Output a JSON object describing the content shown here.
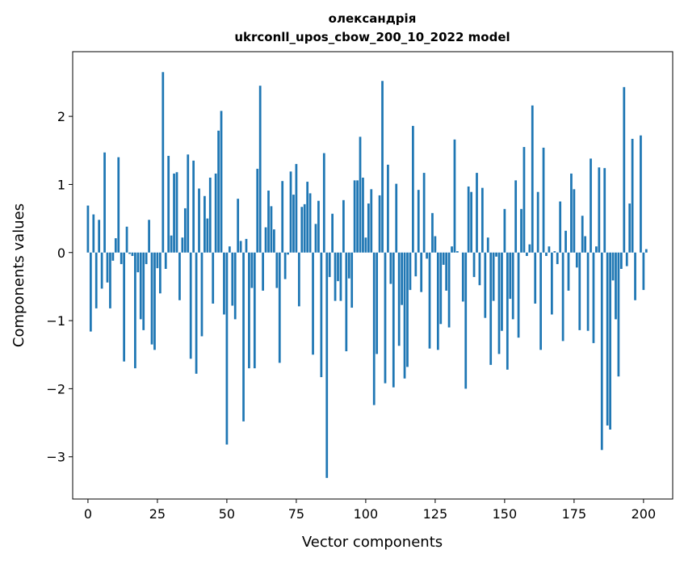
{
  "chart_data": {
    "type": "bar",
    "title": "олександрія",
    "subtitle": "ukrconll_upos_cbow_200_10_2022 model",
    "xlabel": "Vector components",
    "ylabel": "Components values",
    "xlim": [
      -5.5,
      210.5
    ],
    "ylim": [
      -3.62,
      2.95
    ],
    "xticks": [
      0,
      25,
      50,
      75,
      100,
      125,
      150,
      175,
      200
    ],
    "xtick_labels": [
      "0",
      "25",
      "50",
      "75",
      "100",
      "125",
      "150",
      "175",
      "200"
    ],
    "yticks": [
      -3,
      -2,
      -1,
      0,
      1,
      2
    ],
    "ytick_labels": [
      "−3",
      "−2",
      "−1",
      "0",
      "1",
      "2"
    ],
    "bar_color": "#1f77b4",
    "values": [
      0.69,
      -1.16,
      0.56,
      -0.82,
      0.48,
      -0.53,
      1.47,
      -0.44,
      -0.82,
      -0.12,
      0.21,
      1.4,
      -0.17,
      -1.6,
      0.38,
      -0.02,
      -0.05,
      -1.7,
      -0.29,
      -0.98,
      -1.14,
      -0.17,
      0.48,
      -1.35,
      -1.43,
      -0.23,
      -0.6,
      2.65,
      -0.24,
      1.42,
      0.25,
      1.16,
      1.18,
      -0.7,
      0.22,
      0.65,
      1.44,
      -1.56,
      1.35,
      -1.78,
      0.94,
      -1.23,
      0.83,
      0.5,
      1.1,
      -0.75,
      1.16,
      1.79,
      2.08,
      -0.91,
      -2.82,
      0.09,
      -0.78,
      -0.98,
      0.79,
      0.17,
      -2.48,
      0.2,
      -1.7,
      -0.52,
      -1.7,
      1.23,
      2.45,
      -0.56,
      0.37,
      0.91,
      0.68,
      0.34,
      -0.52,
      -1.62,
      1.05,
      -0.39,
      -0.03,
      1.19,
      0.85,
      1.3,
      -0.79,
      0.67,
      0.71,
      1.04,
      0.87,
      -1.5,
      0.42,
      0.76,
      -1.83,
      1.46,
      -3.31,
      -0.36,
      0.57,
      -0.71,
      -0.42,
      -0.71,
      0.77,
      -1.45,
      -0.38,
      -0.81,
      1.06,
      1.06,
      1.7,
      1.1,
      0.22,
      0.72,
      0.93,
      -2.24,
      -1.49,
      0.84,
      2.52,
      -1.92,
      1.29,
      -0.46,
      -1.98,
      1.01,
      -1.37,
      -0.77,
      -1.85,
      -1.68,
      -0.55,
      1.86,
      -0.35,
      0.92,
      -0.58,
      1.17,
      -0.09,
      -1.41,
      0.58,
      0.24,
      -1.43,
      -1.05,
      -0.18,
      -0.56,
      -1.1,
      0.09,
      1.66,
      0.02,
      0.0,
      -0.72,
      -2.0,
      0.97,
      0.89,
      -0.36,
      1.17,
      -0.48,
      0.95,
      -0.96,
      0.22,
      -1.65,
      -0.71,
      -0.06,
      -1.49,
      -1.15,
      0.64,
      -1.72,
      -0.68,
      -0.98,
      1.06,
      -1.25,
      0.64,
      1.55,
      -0.05,
      0.12,
      2.16,
      -0.75,
      0.89,
      -1.43,
      1.54,
      -0.05,
      0.09,
      -0.91,
      0.02,
      -0.17,
      0.75,
      -1.3,
      0.32,
      -0.56,
      1.16,
      0.93,
      -0.22,
      -1.14,
      0.54,
      0.24,
      -1.15,
      1.38,
      -1.33,
      0.09,
      1.25,
      -2.9,
      1.24,
      -2.54,
      -2.6,
      -0.41,
      -0.98,
      -1.82,
      -0.24,
      2.43,
      -0.2,
      0.72,
      1.67,
      -0.7,
      0.0,
      1.72,
      -0.55,
      0.05
    ]
  }
}
